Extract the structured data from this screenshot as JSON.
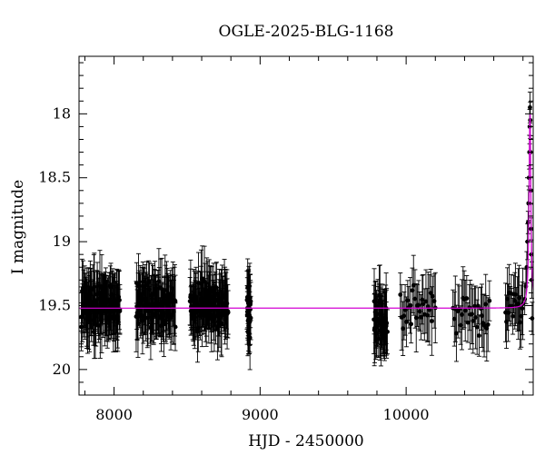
{
  "chart_data": {
    "type": "scatter",
    "title": "OGLE-2025-BLG-1168",
    "xlabel": "HJD - 2450000",
    "ylabel": "I magnitude",
    "xlim": [
      7760,
      10870
    ],
    "ylim": [
      20.2,
      17.55
    ],
    "y_inverted": true,
    "x_ticks": [
      8000,
      9000,
      10000
    ],
    "y_ticks": [
      18,
      18.5,
      19,
      19.5,
      20
    ],
    "x_tick_labels": [
      "8000",
      "9000",
      "10000"
    ],
    "y_tick_labels": [
      "18",
      "18.5",
      "19",
      "19.5",
      "20"
    ],
    "baseline_magnitude": 19.52,
    "model_color": "#d400d4",
    "point_color": "#000000",
    "seasons": [
      {
        "start": 7775,
        "end": 8040,
        "mean": 19.5,
        "n": 110
      },
      {
        "start": 8150,
        "end": 8420,
        "mean": 19.5,
        "n": 110
      },
      {
        "start": 8520,
        "end": 8780,
        "mean": 19.5,
        "n": 110
      },
      {
        "start": 8910,
        "end": 8935,
        "mean": 19.55,
        "n": 30
      },
      {
        "start": 9780,
        "end": 9870,
        "mean": 19.6,
        "n": 45
      },
      {
        "start": 9960,
        "end": 10200,
        "mean": 19.5,
        "n": 30
      },
      {
        "start": 10320,
        "end": 10570,
        "mean": 19.55,
        "n": 30
      },
      {
        "start": 10680,
        "end": 10800,
        "mean": 19.5,
        "n": 20
      }
    ],
    "event": {
      "peak_time": 10848,
      "peak_magnitude": 17.95,
      "points": [
        {
          "x": 10812,
          "y": 19.45
        },
        {
          "x": 10820,
          "y": 19.35
        },
        {
          "x": 10826,
          "y": 19.2
        },
        {
          "x": 10831,
          "y": 19.0
        },
        {
          "x": 10835,
          "y": 18.85
        },
        {
          "x": 10838,
          "y": 18.7
        },
        {
          "x": 10841,
          "y": 18.5
        },
        {
          "x": 10844,
          "y": 18.3
        },
        {
          "x": 10846,
          "y": 18.1
        },
        {
          "x": 10848,
          "y": 17.95
        },
        {
          "x": 10850,
          "y": 18.05
        },
        {
          "x": 10852,
          "y": 18.3
        },
        {
          "x": 10854,
          "y": 18.6
        },
        {
          "x": 10856,
          "y": 18.9
        },
        {
          "x": 10858,
          "y": 19.1
        },
        {
          "x": 10860,
          "y": 19.3
        },
        {
          "x": 10863,
          "y": 19.6
        }
      ]
    }
  }
}
